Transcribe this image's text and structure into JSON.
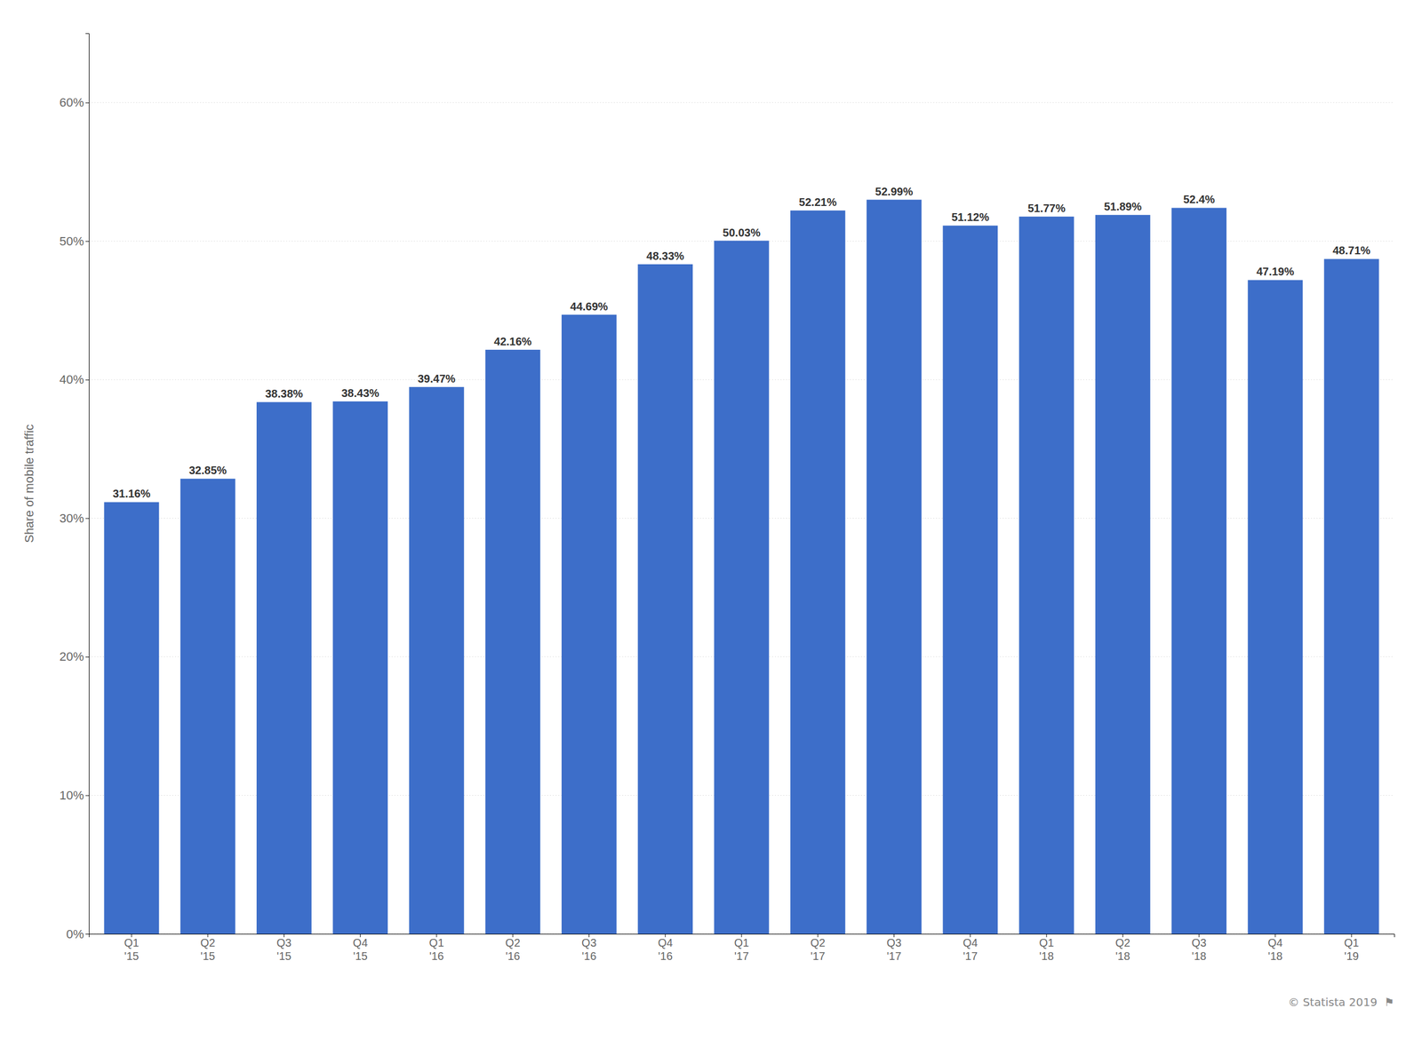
{
  "chart_data": {
    "type": "bar",
    "categories": [
      "Q1 '15",
      "Q2 '15",
      "Q3 '15",
      "Q4 '15",
      "Q1 '16",
      "Q2 '16",
      "Q3 '16",
      "Q4 '16",
      "Q1 '17",
      "Q2 '17",
      "Q3 '17",
      "Q4 '17",
      "Q1 '18",
      "Q2 '18",
      "Q3 '18",
      "Q4 '18",
      "Q1 '19"
    ],
    "values": [
      31.16,
      32.85,
      38.38,
      38.43,
      39.47,
      42.16,
      44.69,
      48.33,
      50.03,
      52.21,
      52.99,
      51.12,
      51.77,
      51.89,
      52.4,
      47.19,
      48.71
    ],
    "value_labels": [
      "31.16%",
      "32.85%",
      "38.38%",
      "38.43%",
      "39.47%",
      "42.16%",
      "44.69%",
      "48.33%",
      "50.03%",
      "52.21%",
      "52.99%",
      "51.12%",
      "51.77%",
      "51.89%",
      "52.4%",
      "47.19%",
      "48.71%"
    ],
    "data_labels": true,
    "color": "#3d6ec9",
    "ylabel": "Share of mobile traffic",
    "ylim": [
      0,
      65
    ],
    "yticks": [
      {
        "value": 0,
        "label": "0%"
      },
      {
        "value": 10,
        "label": "10%"
      },
      {
        "value": 20,
        "label": "20%"
      },
      {
        "value": 30,
        "label": "30%"
      },
      {
        "value": 40,
        "label": "40%"
      },
      {
        "value": 50,
        "label": "50%"
      },
      {
        "value": 60,
        "label": "60%"
      }
    ],
    "grid": true,
    "annotations": [
      "© Statista 2019  ⚑"
    ]
  }
}
